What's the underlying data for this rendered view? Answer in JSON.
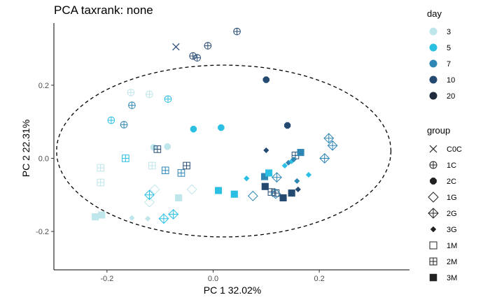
{
  "chart_data": {
    "type": "scatter",
    "title": "PCA taxrank: none",
    "xlabel": "PC 1 32.02%",
    "ylabel": "PC 2 22.31%",
    "xlim": [
      -0.3,
      0.37
    ],
    "ylim": [
      -0.305,
      0.37
    ],
    "xticks": [
      -0.2,
      0.0,
      0.2
    ],
    "yticks": [
      -0.2,
      0.0,
      0.2
    ],
    "xtick_labels": [
      "-0.2",
      "0.0",
      "0.2"
    ],
    "ytick_labels": [
      "-0.2",
      "0.0",
      "0.2"
    ],
    "grid": false,
    "legend_position": "right",
    "ellipse": {
      "style": "dashed",
      "center": [
        0.02,
        0.02
      ],
      "radius_x": 0.315,
      "radius_y": 0.235
    },
    "legend_day": {
      "title": "day",
      "items": [
        {
          "label": "3",
          "color": "#bfe6ea"
        },
        {
          "label": "5",
          "color": "#2bbfe3"
        },
        {
          "label": "7",
          "color": "#2e86b5"
        },
        {
          "label": "10",
          "color": "#254a72"
        },
        {
          "label": "20",
          "color": "#1f2b3d"
        }
      ]
    },
    "legend_group": {
      "title": "group",
      "items": [
        {
          "label": "C0C",
          "shape": "cross"
        },
        {
          "label": "1C",
          "shape": "circle-plus"
        },
        {
          "label": "2C",
          "shape": "octagon-filled"
        },
        {
          "label": "1G",
          "shape": "diamond-open"
        },
        {
          "label": "2G",
          "shape": "diamond-plus"
        },
        {
          "label": "3G",
          "shape": "diamond-filled"
        },
        {
          "label": "1M",
          "shape": "square-open"
        },
        {
          "label": "2M",
          "shape": "square-plus"
        },
        {
          "label": "3M",
          "shape": "square-filled"
        }
      ]
    },
    "points": [
      {
        "x": -0.07,
        "y": 0.305,
        "group": "C0C",
        "day": "10"
      },
      {
        "x": -0.038,
        "y": 0.28,
        "group": "1C",
        "day": "10"
      },
      {
        "x": -0.03,
        "y": 0.275,
        "group": "1C",
        "day": "10"
      },
      {
        "x": -0.01,
        "y": 0.308,
        "group": "1C",
        "day": "10"
      },
      {
        "x": 0.045,
        "y": 0.347,
        "group": "1C",
        "day": "10"
      },
      {
        "x": -0.155,
        "y": 0.18,
        "group": "1C",
        "day": "3"
      },
      {
        "x": -0.12,
        "y": 0.175,
        "group": "1C",
        "day": "3"
      },
      {
        "x": -0.153,
        "y": 0.145,
        "group": "1C",
        "day": "7"
      },
      {
        "x": -0.085,
        "y": 0.162,
        "group": "1C",
        "day": "5"
      },
      {
        "x": -0.192,
        "y": 0.104,
        "group": "1C",
        "day": "5"
      },
      {
        "x": -0.168,
        "y": 0.092,
        "group": "1C",
        "day": "7"
      },
      {
        "x": 0.1,
        "y": 0.215,
        "group": "2C",
        "day": "10"
      },
      {
        "x": -0.037,
        "y": 0.08,
        "group": "2C",
        "day": "5"
      },
      {
        "x": 0.015,
        "y": 0.084,
        "group": "2C",
        "day": "5"
      },
      {
        "x": 0.14,
        "y": 0.09,
        "group": "2C",
        "day": "10"
      },
      {
        "x": -0.112,
        "y": 0.03,
        "group": "2C",
        "day": "3"
      },
      {
        "x": -0.086,
        "y": 0.032,
        "group": "2C",
        "day": "3"
      },
      {
        "x": -0.212,
        "y": -0.026,
        "group": "2M",
        "day": "3"
      },
      {
        "x": -0.212,
        "y": -0.066,
        "group": "2M",
        "day": "3"
      },
      {
        "x": -0.165,
        "y": 0.0,
        "group": "2M",
        "day": "5"
      },
      {
        "x": -0.115,
        "y": -0.02,
        "group": "2M",
        "day": "3"
      },
      {
        "x": -0.105,
        "y": 0.025,
        "group": "2M",
        "day": "10"
      },
      {
        "x": -0.09,
        "y": -0.033,
        "group": "2M",
        "day": "7"
      },
      {
        "x": -0.06,
        "y": -0.04,
        "group": "2M",
        "day": "7"
      },
      {
        "x": -0.05,
        "y": -0.02,
        "group": "2M",
        "day": "10"
      },
      {
        "x": 0.11,
        "y": -0.092,
        "group": "2M",
        "day": "10"
      },
      {
        "x": 0.118,
        "y": -0.095,
        "group": "2M",
        "day": "10"
      },
      {
        "x": 0.155,
        "y": 0.008,
        "group": "2M",
        "day": "10"
      },
      {
        "x": -0.12,
        "y": -0.12,
        "group": "1G",
        "day": "3"
      },
      {
        "x": -0.11,
        "y": -0.085,
        "group": "1G",
        "day": "3"
      },
      {
        "x": -0.04,
        "y": -0.085,
        "group": "1G",
        "day": "3"
      },
      {
        "x": 0.075,
        "y": -0.103,
        "group": "1G",
        "day": "7"
      },
      {
        "x": 0.118,
        "y": -0.097,
        "group": "1G",
        "day": "7"
      },
      {
        "x": -0.12,
        "y": -0.1,
        "group": "2G",
        "day": "5"
      },
      {
        "x": -0.093,
        "y": -0.165,
        "group": "2G",
        "day": "5"
      },
      {
        "x": -0.075,
        "y": -0.153,
        "group": "2G",
        "day": "5"
      },
      {
        "x": 0.12,
        "y": -0.052,
        "group": "2G",
        "day": "7"
      },
      {
        "x": 0.21,
        "y": 0.0,
        "group": "2G",
        "day": "7"
      },
      {
        "x": 0.218,
        "y": 0.055,
        "group": "2G",
        "day": "7"
      },
      {
        "x": 0.225,
        "y": 0.035,
        "group": "2G",
        "day": "7"
      },
      {
        "x": -0.153,
        "y": -0.163,
        "group": "3G",
        "day": "3"
      },
      {
        "x": -0.123,
        "y": -0.165,
        "group": "3G",
        "day": "3"
      },
      {
        "x": 0.063,
        "y": -0.055,
        "group": "3G",
        "day": "5"
      },
      {
        "x": 0.1,
        "y": 0.022,
        "group": "3G",
        "day": "10"
      },
      {
        "x": 0.135,
        "y": -0.02,
        "group": "3G",
        "day": "5"
      },
      {
        "x": 0.142,
        "y": -0.012,
        "group": "3G",
        "day": "7"
      },
      {
        "x": 0.148,
        "y": -0.008,
        "group": "3G",
        "day": "5"
      },
      {
        "x": 0.152,
        "y": -0.003,
        "group": "3G",
        "day": "7"
      },
      {
        "x": 0.158,
        "y": -0.062,
        "group": "3G",
        "day": "7"
      },
      {
        "x": 0.18,
        "y": -0.045,
        "group": "3G",
        "day": "5"
      },
      {
        "x": 0.16,
        "y": -0.085,
        "group": "3G",
        "day": "10"
      },
      {
        "x": -0.222,
        "y": -0.16,
        "group": "3M",
        "day": "3"
      },
      {
        "x": -0.21,
        "y": -0.155,
        "group": "3M",
        "day": "3"
      },
      {
        "x": -0.065,
        "y": -0.108,
        "group": "3M",
        "day": "3"
      },
      {
        "x": 0.01,
        "y": -0.088,
        "group": "3M",
        "day": "5"
      },
      {
        "x": 0.04,
        "y": -0.098,
        "group": "3M",
        "day": "5"
      },
      {
        "x": 0.097,
        "y": -0.05,
        "group": "3M",
        "day": "7"
      },
      {
        "x": 0.105,
        "y": -0.04,
        "group": "3M",
        "day": "5"
      },
      {
        "x": 0.098,
        "y": -0.077,
        "group": "3M",
        "day": "10"
      },
      {
        "x": 0.132,
        "y": -0.108,
        "group": "3M",
        "day": "10"
      },
      {
        "x": 0.165,
        "y": 0.016,
        "group": "3M",
        "day": "7"
      },
      {
        "x": 0.148,
        "y": -0.095,
        "group": "3M",
        "day": "10"
      }
    ]
  }
}
